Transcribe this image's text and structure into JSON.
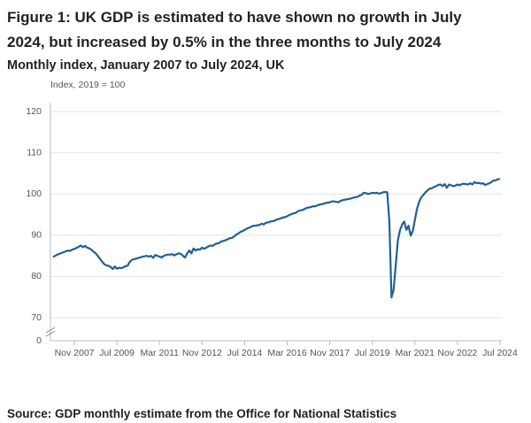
{
  "chart_data": {
    "type": "line",
    "title": "Figure 1: UK GDP is estimated to have shown no growth in July 2024, but increased by 0.5% in the three months to July 2024",
    "subtitle": "Monthly index, January 2007 to July 2024, UK",
    "y_label": "Index, 2019 = 100",
    "source": "Source: GDP monthly estimate from the Office for National Statistics",
    "color": "#206095",
    "grid": true,
    "axis_break": true,
    "ylim": [
      0,
      120
    ],
    "yticks": [
      0,
      70,
      80,
      90,
      100,
      110,
      120
    ],
    "categories": [
      null,
      null,
      null,
      null,
      null,
      null,
      null,
      null,
      null,
      null,
      "Nov 2007",
      null,
      null,
      null,
      null,
      null,
      null,
      null,
      null,
      null,
      null,
      null,
      null,
      null,
      null,
      null,
      null,
      null,
      null,
      null,
      "Jul 2009",
      null,
      null,
      null,
      null,
      null,
      null,
      null,
      null,
      null,
      null,
      null,
      null,
      null,
      null,
      null,
      null,
      null,
      null,
      null,
      "Mar 2011",
      null,
      null,
      null,
      null,
      null,
      null,
      null,
      null,
      null,
      null,
      null,
      null,
      null,
      null,
      null,
      null,
      null,
      null,
      null,
      "Nov 2012",
      null,
      null,
      null,
      null,
      null,
      null,
      null,
      null,
      null,
      null,
      null,
      null,
      null,
      null,
      null,
      null,
      null,
      null,
      null,
      "Jul 2014",
      null,
      null,
      null,
      null,
      null,
      null,
      null,
      null,
      null,
      null,
      null,
      null,
      null,
      null,
      null,
      null,
      null,
      null,
      null,
      "Mar 2016",
      null,
      null,
      null,
      null,
      null,
      null,
      null,
      null,
      null,
      null,
      null,
      null,
      null,
      null,
      null,
      null,
      null,
      null,
      null,
      "Nov 2017",
      null,
      null,
      null,
      null,
      null,
      null,
      null,
      null,
      null,
      null,
      null,
      null,
      null,
      null,
      null,
      null,
      null,
      null,
      null,
      "Jul 2019",
      null,
      null,
      null,
      null,
      null,
      null,
      null,
      null,
      null,
      null,
      null,
      null,
      null,
      null,
      null,
      null,
      null,
      null,
      null,
      "Mar 2021",
      null,
      null,
      null,
      null,
      null,
      null,
      null,
      null,
      null,
      null,
      null,
      null,
      null,
      null,
      null,
      null,
      null,
      null,
      null,
      "Nov 2022",
      null,
      null,
      null,
      null,
      null,
      null,
      null,
      null,
      null,
      null,
      null,
      null,
      null,
      null,
      null,
      null,
      null,
      null,
      null,
      "Jul 2024"
    ],
    "values": [
      84.7,
      85.0,
      85.3,
      85.5,
      85.7,
      85.9,
      86.1,
      86.3,
      86.2,
      86.5,
      86.7,
      86.9,
      87.2,
      87.5,
      87.1,
      87.4,
      87.0,
      86.8,
      86.5,
      86.0,
      85.6,
      85.0,
      84.3,
      83.6,
      83.0,
      82.7,
      82.6,
      82.3,
      81.8,
      82.4,
      81.9,
      82.1,
      82.0,
      82.2,
      82.5,
      82.6,
      83.5,
      84.0,
      84.2,
      84.3,
      84.5,
      84.6,
      84.8,
      84.9,
      85.0,
      84.8,
      85.0,
      84.5,
      85.2,
      85.0,
      84.8,
      84.6,
      85.0,
      85.2,
      85.3,
      85.3,
      85.4,
      85.1,
      85.4,
      85.6,
      85.5,
      85.0,
      84.6,
      85.6,
      86.3,
      85.6,
      86.8,
      86.3,
      86.6,
      86.5,
      87.0,
      86.7,
      87.0,
      87.3,
      87.5,
      87.4,
      87.8,
      88.0,
      88.1,
      88.5,
      88.6,
      88.8,
      89.0,
      89.3,
      89.3,
      89.7,
      90.1,
      90.4,
      90.8,
      91.0,
      91.3,
      91.6,
      91.8,
      92.0,
      92.3,
      92.3,
      92.4,
      92.5,
      92.8,
      92.6,
      93.0,
      93.1,
      93.3,
      93.4,
      93.5,
      93.8,
      93.9,
      94.1,
      94.3,
      94.4,
      94.6,
      94.9,
      95.1,
      95.3,
      95.4,
      95.8,
      96.0,
      96.1,
      96.3,
      96.6,
      96.7,
      96.8,
      97.0,
      97.0,
      97.2,
      97.4,
      97.5,
      97.6,
      97.8,
      97.9,
      98.0,
      98.2,
      98.2,
      98.1,
      98.0,
      98.3,
      98.5,
      98.6,
      98.7,
      98.8,
      98.9,
      99.1,
      99.2,
      99.3,
      99.6,
      99.8,
      100.3,
      100.2,
      100.0,
      100.1,
      100.3,
      100.2,
      100.3,
      100.1,
      100.2,
      100.4,
      100.5,
      100.4,
      93.4,
      74.9,
      76.8,
      82.8,
      88.8,
      91.2,
      92.6,
      93.3,
      91.3,
      92.3,
      89.9,
      91.0,
      93.7,
      96.4,
      98.1,
      99.2,
      99.8,
      100.4,
      100.9,
      101.3,
      101.4,
      101.7,
      101.9,
      102.2,
      102.3,
      101.9,
      102.4,
      101.5,
      102.3,
      102.1,
      101.9,
      102.0,
      102.3,
      102.1,
      102.4,
      102.5,
      102.4,
      102.3,
      102.6,
      102.3,
      102.9,
      102.6,
      102.7,
      102.5,
      102.6,
      102.2,
      102.4,
      102.6,
      102.9,
      103.3,
      103.3,
      103.6,
      103.6
    ]
  }
}
